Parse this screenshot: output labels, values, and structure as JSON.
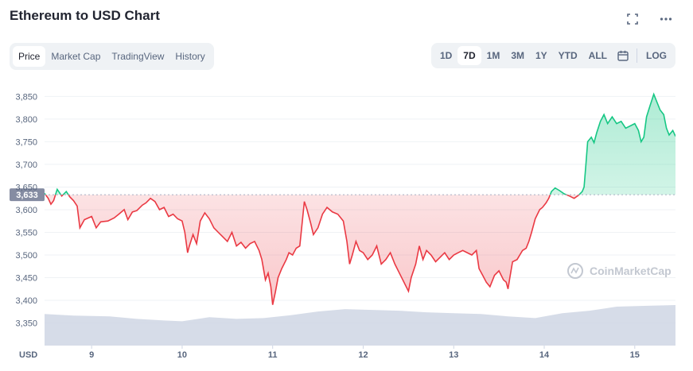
{
  "title": "Ethereum to USD Chart",
  "tabs": [
    {
      "label": "Price",
      "active": true
    },
    {
      "label": "Market Cap",
      "active": false
    },
    {
      "label": "TradingView",
      "active": false
    },
    {
      "label": "History",
      "active": false
    }
  ],
  "ranges": [
    {
      "label": "1D",
      "active": false
    },
    {
      "label": "7D",
      "active": true
    },
    {
      "label": "1M",
      "active": false
    },
    {
      "label": "3M",
      "active": false
    },
    {
      "label": "1Y",
      "active": false
    },
    {
      "label": "YTD",
      "active": false
    },
    {
      "label": "ALL",
      "active": false
    }
  ],
  "log_label": "LOG",
  "icons": {
    "fullscreen": "fullscreen-icon",
    "more": "more-options-icon",
    "calendar": "calendar-icon"
  },
  "watermark": "CoinMarketCap",
  "colors": {
    "up": "#16c784",
    "down": "#ea3943",
    "volume": "#cfd6e4",
    "reference": "#a6b0c3"
  },
  "chart_data": {
    "type": "line",
    "ylim": [
      3300,
      3870
    ],
    "y_ticks": [
      "3,850",
      "3,800",
      "3,750",
      "3,700",
      "3,650",
      "3,600",
      "3,550",
      "3,500",
      "3,450",
      "3,400",
      "3,350"
    ],
    "y_tick_values": [
      3850,
      3800,
      3750,
      3700,
      3650,
      3600,
      3550,
      3500,
      3450,
      3400,
      3350
    ],
    "x_unit_label": "USD",
    "x_ticks": [
      "9",
      "10",
      "11",
      "12",
      "13",
      "14",
      "15"
    ],
    "x_range": [
      8.48,
      15.45
    ],
    "reference_value": 3633,
    "reference_label": "3,633",
    "price_series": [
      [
        8.48,
        3636
      ],
      [
        8.52,
        3625
      ],
      [
        8.55,
        3612
      ],
      [
        8.58,
        3620
      ],
      [
        8.62,
        3645
      ],
      [
        8.67,
        3630
      ],
      [
        8.72,
        3640
      ],
      [
        8.76,
        3628
      ],
      [
        8.8,
        3620
      ],
      [
        8.84,
        3608
      ],
      [
        8.87,
        3560
      ],
      [
        8.92,
        3578
      ],
      [
        9.0,
        3585
      ],
      [
        9.05,
        3560
      ],
      [
        9.1,
        3573
      ],
      [
        9.18,
        3575
      ],
      [
        9.25,
        3582
      ],
      [
        9.3,
        3590
      ],
      [
        9.36,
        3600
      ],
      [
        9.4,
        3578
      ],
      [
        9.45,
        3595
      ],
      [
        9.5,
        3598
      ],
      [
        9.56,
        3610
      ],
      [
        9.6,
        3615
      ],
      [
        9.65,
        3625
      ],
      [
        9.7,
        3618
      ],
      [
        9.75,
        3600
      ],
      [
        9.8,
        3605
      ],
      [
        9.85,
        3585
      ],
      [
        9.9,
        3590
      ],
      [
        9.95,
        3580
      ],
      [
        10.0,
        3575
      ],
      [
        10.03,
        3550
      ],
      [
        10.06,
        3505
      ],
      [
        10.08,
        3520
      ],
      [
        10.12,
        3545
      ],
      [
        10.16,
        3525
      ],
      [
        10.2,
        3575
      ],
      [
        10.25,
        3593
      ],
      [
        10.3,
        3580
      ],
      [
        10.35,
        3560
      ],
      [
        10.4,
        3550
      ],
      [
        10.45,
        3540
      ],
      [
        10.5,
        3530
      ],
      [
        10.55,
        3550
      ],
      [
        10.6,
        3520
      ],
      [
        10.65,
        3528
      ],
      [
        10.7,
        3515
      ],
      [
        10.75,
        3525
      ],
      [
        10.8,
        3530
      ],
      [
        10.85,
        3510
      ],
      [
        10.88,
        3490
      ],
      [
        10.92,
        3445
      ],
      [
        10.95,
        3460
      ],
      [
        10.98,
        3430
      ],
      [
        11.0,
        3390
      ],
      [
        11.03,
        3418
      ],
      [
        11.06,
        3450
      ],
      [
        11.1,
        3470
      ],
      [
        11.15,
        3490
      ],
      [
        11.18,
        3505
      ],
      [
        11.22,
        3500
      ],
      [
        11.26,
        3515
      ],
      [
        11.3,
        3520
      ],
      [
        11.33,
        3580
      ],
      [
        11.35,
        3618
      ],
      [
        11.38,
        3600
      ],
      [
        11.42,
        3570
      ],
      [
        11.45,
        3545
      ],
      [
        11.5,
        3560
      ],
      [
        11.55,
        3590
      ],
      [
        11.6,
        3605
      ],
      [
        11.66,
        3595
      ],
      [
        11.72,
        3590
      ],
      [
        11.78,
        3575
      ],
      [
        11.82,
        3530
      ],
      [
        11.85,
        3480
      ],
      [
        11.88,
        3500
      ],
      [
        11.92,
        3530
      ],
      [
        11.96,
        3510
      ],
      [
        12.0,
        3505
      ],
      [
        12.05,
        3490
      ],
      [
        12.1,
        3500
      ],
      [
        12.15,
        3520
      ],
      [
        12.2,
        3480
      ],
      [
        12.25,
        3490
      ],
      [
        12.3,
        3505
      ],
      [
        12.35,
        3480
      ],
      [
        12.4,
        3460
      ],
      [
        12.45,
        3440
      ],
      [
        12.5,
        3420
      ],
      [
        12.53,
        3450
      ],
      [
        12.58,
        3480
      ],
      [
        12.62,
        3520
      ],
      [
        12.66,
        3490
      ],
      [
        12.7,
        3510
      ],
      [
        12.75,
        3500
      ],
      [
        12.8,
        3485
      ],
      [
        12.85,
        3495
      ],
      [
        12.9,
        3505
      ],
      [
        12.95,
        3490
      ],
      [
        13.0,
        3500
      ],
      [
        13.05,
        3505
      ],
      [
        13.1,
        3510
      ],
      [
        13.15,
        3505
      ],
      [
        13.2,
        3500
      ],
      [
        13.25,
        3510
      ],
      [
        13.28,
        3470
      ],
      [
        13.32,
        3455
      ],
      [
        13.36,
        3440
      ],
      [
        13.4,
        3430
      ],
      [
        13.45,
        3455
      ],
      [
        13.5,
        3465
      ],
      [
        13.55,
        3445
      ],
      [
        13.58,
        3440
      ],
      [
        13.6,
        3425
      ],
      [
        13.62,
        3450
      ],
      [
        13.65,
        3485
      ],
      [
        13.7,
        3490
      ],
      [
        13.73,
        3500
      ],
      [
        13.76,
        3510
      ],
      [
        13.8,
        3515
      ],
      [
        13.83,
        3530
      ],
      [
        13.86,
        3550
      ],
      [
        13.9,
        3580
      ],
      [
        13.95,
        3600
      ],
      [
        13.98,
        3605
      ],
      [
        14.02,
        3615
      ],
      [
        14.05,
        3625
      ],
      [
        14.08,
        3640
      ],
      [
        14.12,
        3648
      ],
      [
        14.17,
        3642
      ],
      [
        14.22,
        3635
      ],
      [
        14.28,
        3630
      ],
      [
        14.33,
        3625
      ],
      [
        14.38,
        3632
      ],
      [
        14.42,
        3640
      ],
      [
        14.44,
        3650
      ],
      [
        14.46,
        3700
      ],
      [
        14.48,
        3750
      ],
      [
        14.52,
        3760
      ],
      [
        14.55,
        3748
      ],
      [
        14.58,
        3770
      ],
      [
        14.62,
        3795
      ],
      [
        14.66,
        3810
      ],
      [
        14.7,
        3790
      ],
      [
        14.75,
        3805
      ],
      [
        14.8,
        3790
      ],
      [
        14.85,
        3795
      ],
      [
        14.9,
        3780
      ],
      [
        14.95,
        3785
      ],
      [
        15.0,
        3790
      ],
      [
        15.04,
        3775
      ],
      [
        15.07,
        3750
      ],
      [
        15.1,
        3760
      ],
      [
        15.13,
        3805
      ],
      [
        15.17,
        3830
      ],
      [
        15.21,
        3855
      ],
      [
        15.24,
        3840
      ],
      [
        15.28,
        3820
      ],
      [
        15.32,
        3810
      ],
      [
        15.35,
        3780
      ],
      [
        15.38,
        3765
      ],
      [
        15.42,
        3775
      ],
      [
        15.45,
        3762
      ]
    ],
    "volume_series": [
      [
        8.48,
        0.78
      ],
      [
        8.8,
        0.74
      ],
      [
        9.2,
        0.72
      ],
      [
        9.5,
        0.66
      ],
      [
        9.8,
        0.62
      ],
      [
        10.0,
        0.6
      ],
      [
        10.3,
        0.7
      ],
      [
        10.6,
        0.66
      ],
      [
        10.9,
        0.68
      ],
      [
        11.2,
        0.75
      ],
      [
        11.5,
        0.84
      ],
      [
        11.8,
        0.9
      ],
      [
        12.1,
        0.88
      ],
      [
        12.4,
        0.86
      ],
      [
        12.7,
        0.82
      ],
      [
        13.0,
        0.8
      ],
      [
        13.3,
        0.78
      ],
      [
        13.6,
        0.72
      ],
      [
        13.9,
        0.68
      ],
      [
        14.2,
        0.8
      ],
      [
        14.5,
        0.86
      ],
      [
        14.8,
        0.96
      ],
      [
        15.1,
        0.98
      ],
      [
        15.45,
        1.0
      ]
    ]
  }
}
